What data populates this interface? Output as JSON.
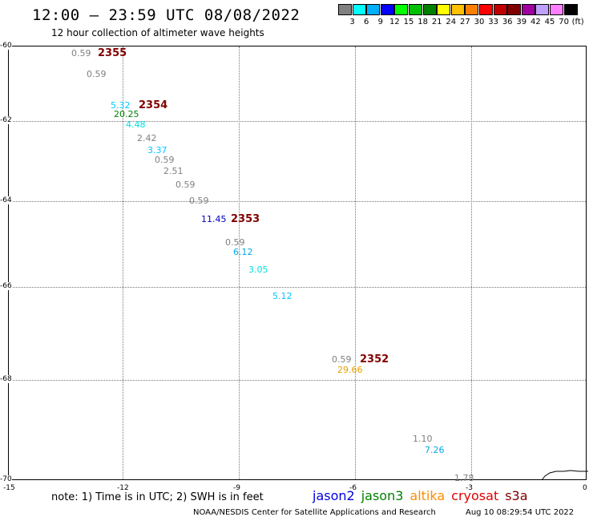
{
  "header": {
    "title": "12:00 – 23:59 UTC 08/08/2022",
    "subtitle": "12 hour collection of altimeter wave heights"
  },
  "legend": {
    "labels": [
      "3",
      "6",
      "9",
      "12",
      "15",
      "18",
      "21",
      "24",
      "27",
      "30",
      "33",
      "36",
      "39",
      "42",
      "45",
      "70"
    ],
    "colors": [
      "#808080",
      "#00ffff",
      "#00b0ff",
      "#0000ff",
      "#00ff00",
      "#00c000",
      "#008000",
      "#ffff00",
      "#ffc000",
      "#ff8000",
      "#ff0000",
      "#c00000",
      "#800000",
      "#a000a0",
      "#c0a0ff",
      "#ff80ff",
      "#000000"
    ],
    "unit": "(ft)"
  },
  "axes": {
    "y_ticks": [
      "-60",
      "-62",
      "-64",
      "-66",
      "-68",
      "-70"
    ],
    "x_ticks": [
      "-15",
      "-12",
      "-9",
      "-6",
      "-3",
      "0"
    ]
  },
  "observations": [
    {
      "value": "0.59",
      "color": "#808080"
    },
    {
      "value": "0.59",
      "color": "#808080"
    },
    {
      "value": "5.32",
      "color": "#00c8ff"
    },
    {
      "value": "20.25",
      "color": "#008000"
    },
    {
      "value": "4.48",
      "color": "#00e0e0"
    },
    {
      "value": "2.42",
      "color": "#808080"
    },
    {
      "value": "3.37",
      "color": "#00c8ff"
    },
    {
      "value": "0.59",
      "color": "#808080"
    },
    {
      "value": "2.51",
      "color": "#808080"
    },
    {
      "value": "0.59",
      "color": "#808080"
    },
    {
      "value": "0.59",
      "color": "#808080"
    },
    {
      "value": "11.45",
      "color": "#0000c0"
    },
    {
      "value": "0.59",
      "color": "#808080"
    },
    {
      "value": "6.12",
      "color": "#00a8e8"
    },
    {
      "value": "3.05",
      "color": "#00e0e0"
    },
    {
      "value": "5.12",
      "color": "#00c8ff"
    },
    {
      "value": "0.59",
      "color": "#808080"
    },
    {
      "value": "29.66",
      "color": "#e8a000"
    },
    {
      "value": "1.10",
      "color": "#808080"
    },
    {
      "value": "7.26",
      "color": "#00a8e8"
    },
    {
      "value": "1.78",
      "color": "#808080"
    }
  ],
  "passes": [
    "2355",
    "2354",
    "2353",
    "2352"
  ],
  "footer": {
    "note": "note: 1) Time is in UTC; 2) SWH is in feet",
    "satellites": [
      {
        "name": "jason2",
        "color": "#0000e0"
      },
      {
        "name": "jason3",
        "color": "#008000"
      },
      {
        "name": "altika",
        "color": "#ff8c00"
      },
      {
        "name": "cryosat",
        "color": "#e00000"
      },
      {
        "name": "s3a",
        "color": "#800000"
      }
    ],
    "credit": "NOAA/NESDIS Center for Satellite Applications and Research",
    "timestamp": "Aug 10 08:29:54 UTC 2022"
  }
}
